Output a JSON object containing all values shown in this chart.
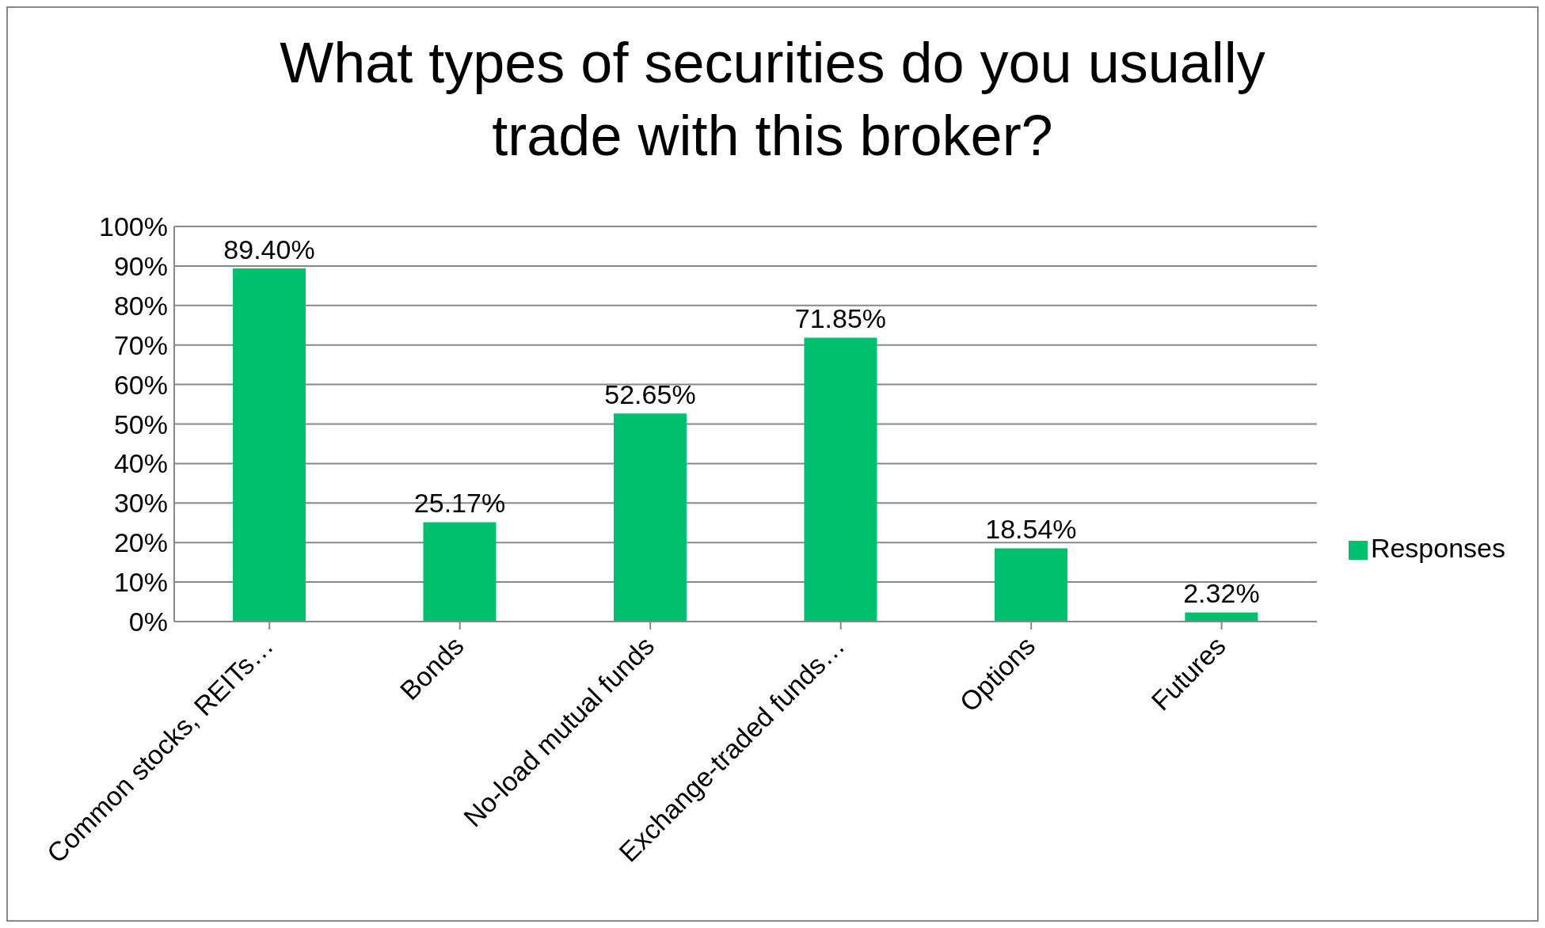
{
  "chart_data": {
    "type": "bar",
    "title": "What types of securities do you usually trade with this broker?",
    "categories": [
      "Common stocks, REITs…",
      "Bonds",
      "No-load mutual funds",
      "Exchange-traded funds…",
      "Options",
      "Futures"
    ],
    "series": [
      {
        "name": "Responses",
        "color": "#00bf6f",
        "values": [
          89.4,
          25.17,
          52.65,
          71.85,
          18.54,
          2.32
        ],
        "value_labels": [
          "89.40%",
          "25.17%",
          "52.65%",
          "71.85%",
          "18.54%",
          "2.32%"
        ]
      }
    ],
    "ylim": [
      0,
      100
    ],
    "yticks": [
      {
        "value": 0,
        "label": "0%"
      },
      {
        "value": 10,
        "label": "10%"
      },
      {
        "value": 20,
        "label": "20%"
      },
      {
        "value": 30,
        "label": "30%"
      },
      {
        "value": 40,
        "label": "40%"
      },
      {
        "value": 50,
        "label": "50%"
      },
      {
        "value": 60,
        "label": "60%"
      },
      {
        "value": 70,
        "label": "70%"
      },
      {
        "value": 80,
        "label": "80%"
      },
      {
        "value": 90,
        "label": "90%"
      },
      {
        "value": 100,
        "label": "100%"
      }
    ],
    "grid": "y",
    "legend": "right"
  }
}
